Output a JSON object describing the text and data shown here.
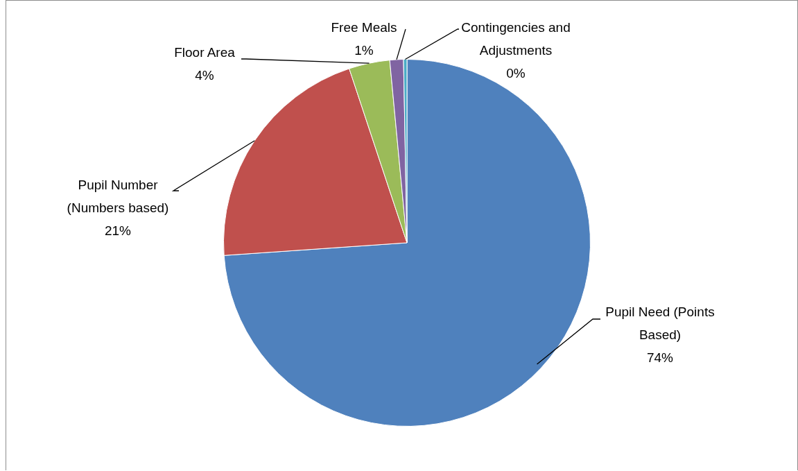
{
  "chart_data": {
    "type": "pie",
    "categories": [
      "Pupil Need (Points Based)",
      "Pupil Number (Numbers based)",
      "Floor Area",
      "Free Meals",
      "Contingencies and Adjustments"
    ],
    "values": [
      73.9,
      21.0,
      3.6,
      1.2,
      0.3
    ],
    "value_labels": [
      "74%",
      "21%",
      "4%",
      "1%",
      "0%"
    ],
    "colors": [
      "#4f81bd",
      "#c0504d",
      "#9bbb59",
      "#8064a2",
      "#4bacc6"
    ],
    "legend": false
  }
}
